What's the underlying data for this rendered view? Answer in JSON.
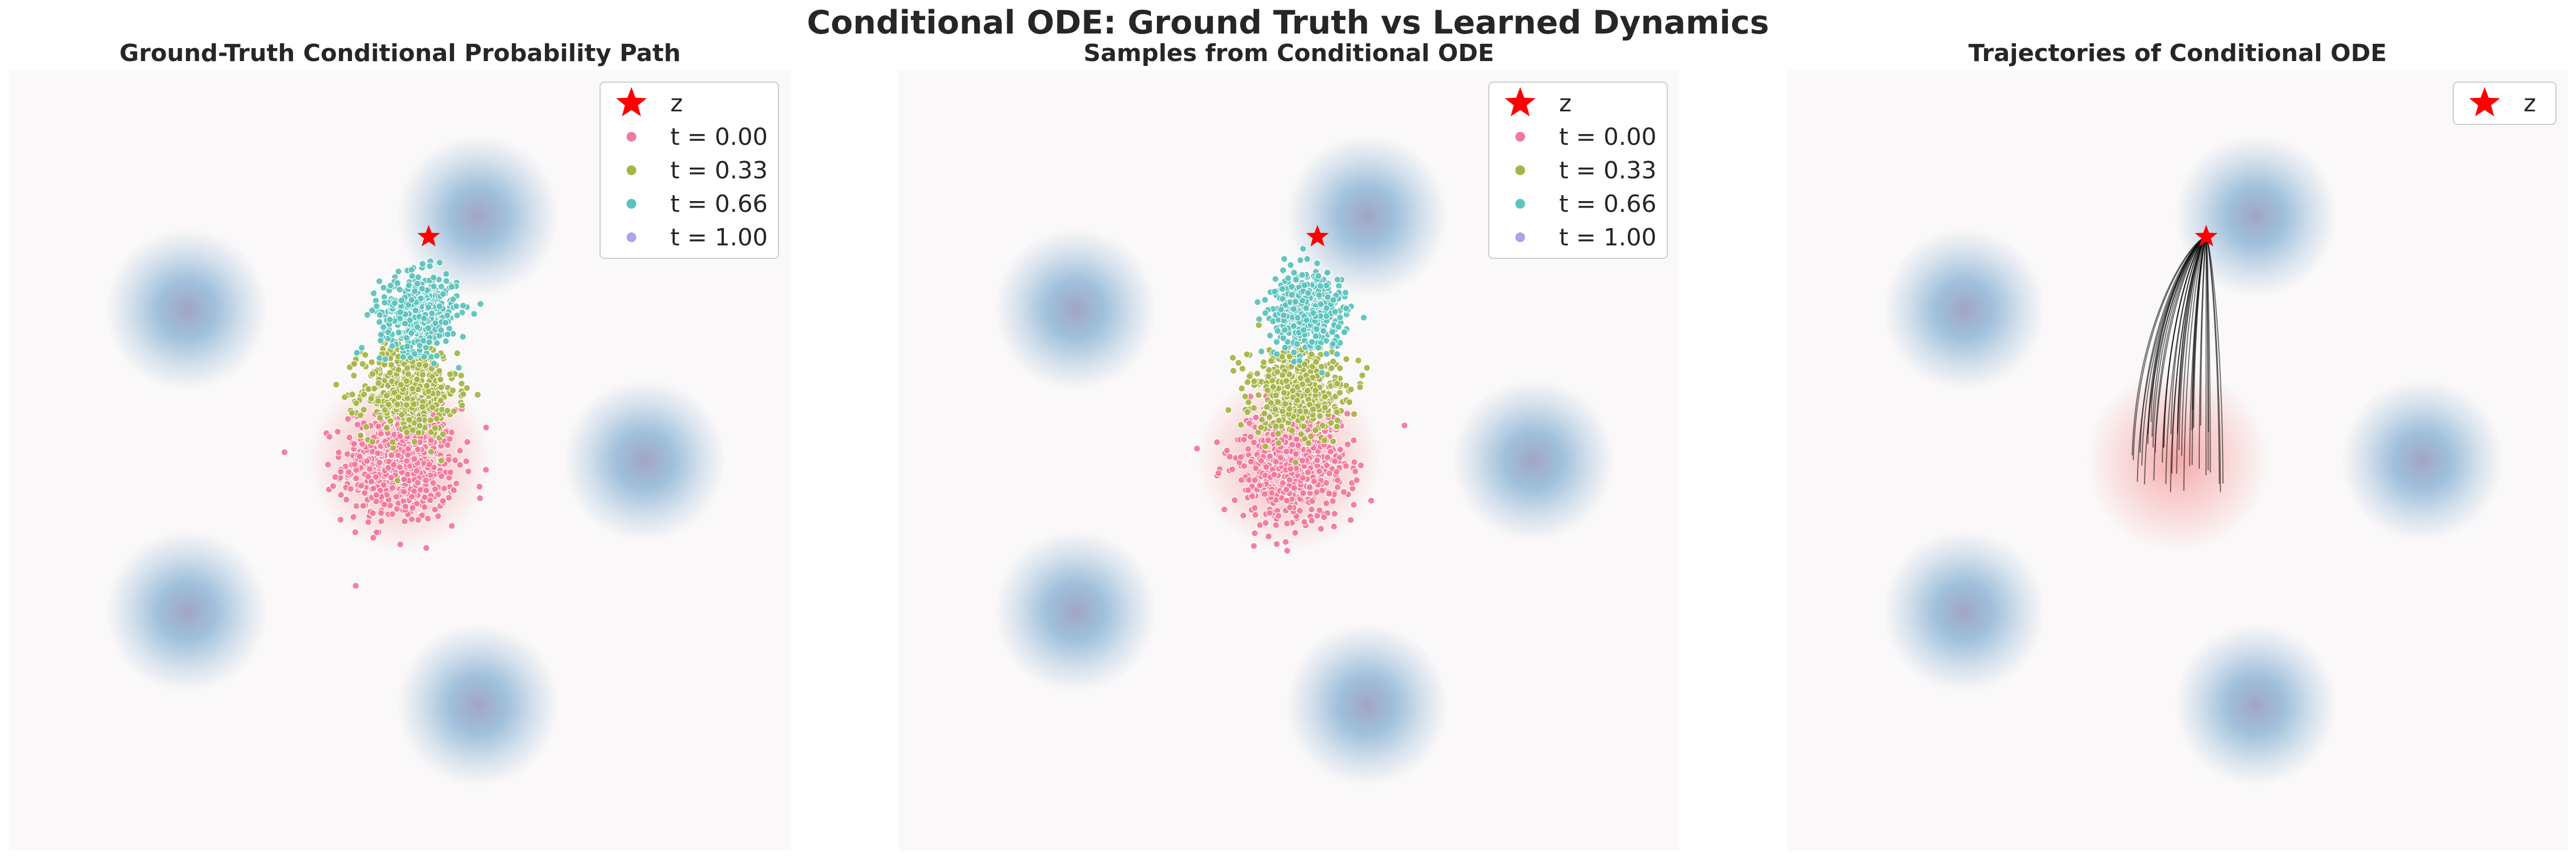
{
  "figure": {
    "suptitle": "Conditional ODE: Ground Truth vs Learned Dynamics"
  },
  "colors": {
    "background": "#faf8f8",
    "target_blob": "#8fb6d6",
    "target_center": "#a2a5c3",
    "source_blob": "#f7b3b3",
    "star": "#ff0000",
    "trajectory": "#000000",
    "t0": "#f2799b",
    "t33": "#a7b548",
    "t66": "#5cc3bd",
    "t100": "#b3a0e6"
  },
  "chart_data": [
    {
      "type": "scatter",
      "title": "Ground-Truth Conditional Probability Path",
      "xlim": [
        -7.5,
        7.5
      ],
      "ylim": [
        -7.5,
        7.5
      ],
      "grid": false,
      "legend_position": "top-right",
      "legend": [
        {
          "label": "z",
          "marker": "star",
          "color": "#ff0000"
        },
        {
          "label": "t = 0.00",
          "marker": "dot",
          "color": "#f2799b"
        },
        {
          "label": "t = 0.33",
          "marker": "dot",
          "color": "#a7b548"
        },
        {
          "label": "t = 0.66",
          "marker": "dot",
          "color": "#5cc3bd"
        },
        {
          "label": "t = 1.00",
          "marker": "dot",
          "color": "#b3a0e6"
        }
      ],
      "target_gaussians": [
        {
          "x": 1.5,
          "y": 4.7,
          "std": 1.0
        },
        {
          "x": -4.1,
          "y": 2.9,
          "std": 1.0
        },
        {
          "x": 4.7,
          "y": 0.0,
          "std": 1.0
        },
        {
          "x": -4.1,
          "y": -2.9,
          "std": 1.0
        },
        {
          "x": 1.5,
          "y": -4.7,
          "std": 1.0
        }
      ],
      "source_gaussian": {
        "x": 0.0,
        "y": 0.0,
        "std": 1.0
      },
      "z": {
        "x": 0.55,
        "y": 4.3
      },
      "sample_clouds": [
        {
          "t": 0.0,
          "center": [
            0.0,
            -0.1
          ],
          "std": 0.55,
          "n": 600
        },
        {
          "t": 0.33,
          "center": [
            0.18,
            1.35
          ],
          "std": 0.45,
          "n": 500
        },
        {
          "t": 0.66,
          "center": [
            0.36,
            2.85
          ],
          "std": 0.37,
          "n": 450
        },
        {
          "t": 1.0,
          "center": [
            0.55,
            4.3
          ],
          "std": 0.0,
          "n": 0
        }
      ]
    },
    {
      "type": "scatter",
      "title": "Samples from Conditional ODE",
      "xlim": [
        -7.5,
        7.5
      ],
      "ylim": [
        -7.5,
        7.5
      ],
      "grid": false,
      "legend_position": "top-right",
      "legend": [
        {
          "label": "z",
          "marker": "star",
          "color": "#ff0000"
        },
        {
          "label": "t = 0.00",
          "marker": "dot",
          "color": "#f2799b"
        },
        {
          "label": "t = 0.33",
          "marker": "dot",
          "color": "#a7b548"
        },
        {
          "label": "t = 0.66",
          "marker": "dot",
          "color": "#5cc3bd"
        },
        {
          "label": "t = 1.00",
          "marker": "dot",
          "color": "#b3a0e6"
        }
      ],
      "target_gaussians": [
        {
          "x": 1.5,
          "y": 4.7,
          "std": 1.0
        },
        {
          "x": -4.1,
          "y": 2.9,
          "std": 1.0
        },
        {
          "x": 4.7,
          "y": 0.0,
          "std": 1.0
        },
        {
          "x": -4.1,
          "y": -2.9,
          "std": 1.0
        },
        {
          "x": 1.5,
          "y": -4.7,
          "std": 1.0
        }
      ],
      "source_gaussian": {
        "x": 0.0,
        "y": 0.0,
        "std": 1.0
      },
      "z": {
        "x": 0.55,
        "y": 4.3
      },
      "sample_clouds": [
        {
          "t": 0.0,
          "center": [
            0.0,
            -0.1
          ],
          "std": 0.55,
          "n": 600
        },
        {
          "t": 0.33,
          "center": [
            0.18,
            1.35
          ],
          "std": 0.45,
          "n": 500
        },
        {
          "t": 0.66,
          "center": [
            0.36,
            2.85
          ],
          "std": 0.37,
          "n": 450
        },
        {
          "t": 1.0,
          "center": [
            0.55,
            4.3
          ],
          "std": 0.0,
          "n": 0
        }
      ]
    },
    {
      "type": "line",
      "title": "Trajectories of Conditional ODE",
      "xlim": [
        -7.5,
        7.5
      ],
      "ylim": [
        -7.5,
        7.5
      ],
      "grid": false,
      "legend_position": "top-right",
      "legend": [
        {
          "label": "z",
          "marker": "star",
          "color": "#ff0000"
        }
      ],
      "target_gaussians": [
        {
          "x": 1.5,
          "y": 4.7,
          "std": 1.0
        },
        {
          "x": -4.1,
          "y": 2.9,
          "std": 1.0
        },
        {
          "x": 4.7,
          "y": 0.0,
          "std": 1.0
        },
        {
          "x": -4.1,
          "y": -2.9,
          "std": 1.0
        },
        {
          "x": 1.5,
          "y": -4.7,
          "std": 1.0
        }
      ],
      "source_gaussian": {
        "x": 0.0,
        "y": 0.0,
        "std": 1.0
      },
      "z": {
        "x": 0.55,
        "y": 4.3
      },
      "trajectories": {
        "n": 40,
        "start_std": 0.55,
        "end": [
          0.55,
          4.3
        ]
      }
    }
  ]
}
